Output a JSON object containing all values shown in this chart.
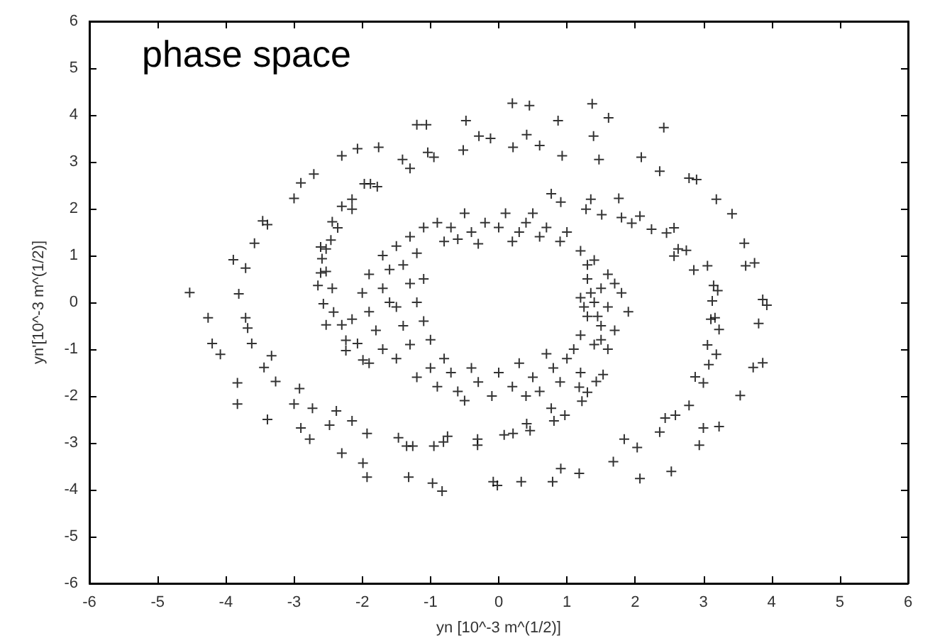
{
  "chart_data": {
    "type": "scatter",
    "title": "phase space",
    "xlabel": "yn [10^-3 m^(1/2)]",
    "ylabel": "yn'[10^-3 m^(1/2)]",
    "xlim": [
      -6,
      6
    ],
    "ylim": [
      -6,
      6
    ],
    "xticks": [
      -6,
      -5,
      -4,
      -3,
      -2,
      -1,
      0,
      1,
      2,
      3,
      4,
      5,
      6
    ],
    "yticks": [
      -6,
      -5,
      -4,
      -3,
      -2,
      -1,
      0,
      1,
      2,
      3,
      4,
      5,
      6
    ],
    "grid": false,
    "marker": "cross",
    "series": [
      {
        "color": "#000000",
        "x": [
          -4.53,
          -4.26,
          -4.2,
          -4.08,
          -3.83,
          -3.83,
          -3.89,
          -3.71,
          -3.58,
          -3.46,
          -3.39,
          -3.0,
          -2.9,
          -2.71,
          -2.3,
          -2.07,
          -1.76,
          -1.2,
          -1.06,
          -0.48,
          -0.29,
          -0.12,
          -0.52,
          0.21,
          -1.41,
          -1.3,
          -1.04,
          -0.95,
          -1.97,
          -1.88,
          -1.78,
          -2.3,
          -2.15,
          -2.15,
          -2.44,
          -2.36,
          -2.46,
          -2.61,
          -2.53,
          -2.59,
          -2.61,
          -2.53,
          -2.65,
          -2.44,
          -2.57,
          -2.42,
          -2.53,
          -2.3,
          -2.15,
          -2.24,
          -2.24,
          -2.07,
          -1.99,
          -3.81,
          -3.71,
          -3.68,
          -3.62,
          -3.33,
          -3.44,
          -3.27,
          -2.92,
          -3.0,
          -2.73,
          -2.38,
          -2.48,
          -2.15,
          -1.93,
          -2.9,
          -2.77,
          -3.39,
          -2.3,
          -1.99,
          -1.93,
          -1.32,
          -1.47,
          -1.35,
          -1.26,
          -0.95,
          -0.81,
          -0.75,
          -0.31,
          -0.31,
          0.08,
          0.21,
          -0.97,
          -0.83,
          -0.08,
          -0.02,
          0.33,
          0.87,
          1.61,
          2.42,
          0.41,
          0.6,
          1.39,
          0.93,
          1.47,
          2.09,
          2.36,
          2.79,
          2.9,
          3.19,
          3.42,
          3.6,
          3.75,
          3.62,
          3.87,
          3.93,
          3.81,
          3.87,
          3.73,
          3.54,
          3.23,
          3.0,
          2.94,
          2.53,
          2.07,
          1.68,
          2.03,
          1.84,
          2.36,
          2.44,
          2.59,
          2.79,
          2.88,
          3.0,
          3.08,
          3.19,
          3.06,
          3.23,
          3.11,
          3.17,
          3.13,
          3.21,
          3.15,
          3.06,
          2.86,
          2.57,
          2.63,
          2.75,
          2.46,
          2.57,
          2.24,
          2.07,
          1.95,
          1.8,
          1.76,
          1.51,
          1.28,
          1.35,
          0.77,
          0.91,
          0.77,
          0.81,
          0.97,
          0.41,
          0.46,
          1.18,
          1.22,
          1.3,
          1.43,
          1.53,
          0.91,
          1.18,
          0.79,
          0.2,
          0.45,
          1.37,
          -1.5,
          -1.3,
          -1.1,
          -0.9,
          -0.7,
          -0.5,
          -0.4,
          -0.2,
          0,
          0.1,
          0.3,
          0.4,
          0.6,
          0.7,
          0.9,
          1.0,
          1.2,
          -0.8,
          -0.3,
          0.2,
          -1.7,
          -1.2,
          0.5,
          -0.6,
          -1.9,
          -1.6,
          -1.4,
          -2.0,
          -1.7,
          -1.3,
          -1.9,
          -1.5,
          -1.2,
          -1.8,
          -1.4,
          -1.1,
          -1.7,
          -1.3,
          -1.0,
          -1.9,
          -1.5,
          -1.6,
          -1.1,
          -1.2,
          -1.0,
          -0.9,
          -0.7,
          -0.6,
          -0.4,
          -0.3,
          -0.1,
          0,
          0.2,
          0.3,
          0.5,
          0.6,
          0.8,
          0.9,
          1.0,
          1.2,
          -0.5,
          0.4,
          -0.8,
          0.7,
          1.4,
          1.6,
          1.3,
          1.5,
          1.8,
          1.2,
          1.4,
          1.6,
          1.9,
          1.3,
          1.5,
          1.7,
          1.2,
          1.4,
          1.6,
          1.1,
          1.35,
          1.45,
          1.3,
          1.7,
          1.5,
          1.25
        ],
        "values": [
          0.21,
          -0.33,
          -0.88,
          -1.11,
          -1.72,
          -2.17,
          0.91,
          0.73,
          1.26,
          1.74,
          1.66,
          2.22,
          2.55,
          2.74,
          3.13,
          3.28,
          3.31,
          3.79,
          3.79,
          3.88,
          3.55,
          3.5,
          3.25,
          3.31,
          3.05,
          2.86,
          3.2,
          3.1,
          2.53,
          2.53,
          2.47,
          2.05,
          2.2,
          1.99,
          1.72,
          1.59,
          1.33,
          1.18,
          1.14,
          0.93,
          0.63,
          0.66,
          0.36,
          0.3,
          -0.03,
          -0.21,
          -0.48,
          -0.48,
          -0.36,
          -0.81,
          -1.03,
          -0.88,
          -1.23,
          0.18,
          -0.33,
          -0.55,
          -0.88,
          -1.14,
          -1.39,
          -1.69,
          -1.84,
          -2.17,
          -2.26,
          -2.32,
          -2.62,
          -2.53,
          -2.8,
          -2.68,
          -2.92,
          -2.5,
          -3.22,
          -3.43,
          -3.73,
          -3.73,
          -2.89,
          -3.07,
          -3.07,
          -3.07,
          -2.98,
          -2.86,
          -2.92,
          -3.05,
          -2.83,
          -2.8,
          -3.86,
          -4.03,
          -3.83,
          -3.91,
          -3.83,
          3.88,
          3.94,
          3.73,
          3.58,
          3.35,
          3.55,
          3.13,
          3.05,
          3.1,
          2.8,
          2.65,
          2.62,
          2.2,
          1.89,
          1.26,
          0.84,
          0.78,
          0.06,
          -0.06,
          -0.45,
          -1.29,
          -1.39,
          -1.99,
          -2.65,
          -2.68,
          -3.05,
          -3.61,
          -3.76,
          -3.4,
          -3.1,
          -2.92,
          -2.77,
          -2.47,
          -2.41,
          -2.2,
          -1.59,
          -1.72,
          -1.33,
          -1.11,
          -0.91,
          -0.58,
          -0.36,
          -0.33,
          0.03,
          0.25,
          0.36,
          0.78,
          0.69,
          0.99,
          1.14,
          1.11,
          1.48,
          1.59,
          1.56,
          1.84,
          1.69,
          1.81,
          2.22,
          1.87,
          1.99,
          2.2,
          2.32,
          2.14,
          -2.26,
          -2.53,
          -2.41,
          -2.59,
          -2.74,
          -1.81,
          -2.11,
          -1.92,
          -1.69,
          -1.54,
          -3.55,
          -3.65,
          -3.83,
          4.25,
          4.2,
          4.24,
          1.2,
          1.4,
          1.6,
          1.7,
          1.6,
          1.9,
          1.5,
          1.7,
          1.6,
          1.9,
          1.5,
          1.7,
          1.4,
          1.6,
          1.3,
          1.5,
          1.1,
          1.3,
          1.25,
          1.3,
          1.0,
          1.05,
          1.9,
          1.35,
          0.6,
          0.7,
          0.8,
          0.2,
          0.3,
          0.4,
          -0.2,
          -0.1,
          0.0,
          -0.6,
          -0.5,
          -0.4,
          -1.0,
          -0.9,
          -0.8,
          -1.3,
          -1.2,
          0.0,
          0.5,
          -1.6,
          -1.4,
          -1.8,
          -1.5,
          -1.9,
          -1.4,
          -1.7,
          -2.0,
          -1.5,
          -1.8,
          -1.3,
          -1.6,
          -1.9,
          -1.4,
          -1.7,
          -1.2,
          -1.5,
          -2.1,
          -2.0,
          -1.2,
          -1.1,
          0.9,
          0.6,
          0.5,
          0.3,
          0.2,
          0.1,
          0.0,
          -0.1,
          -0.2,
          -0.3,
          -0.5,
          -0.6,
          -0.7,
          -0.9,
          -1.0,
          -1.0,
          0.2,
          -0.3,
          0.8,
          0.4,
          -0.8,
          -0.1
        ]
      }
    ]
  }
}
